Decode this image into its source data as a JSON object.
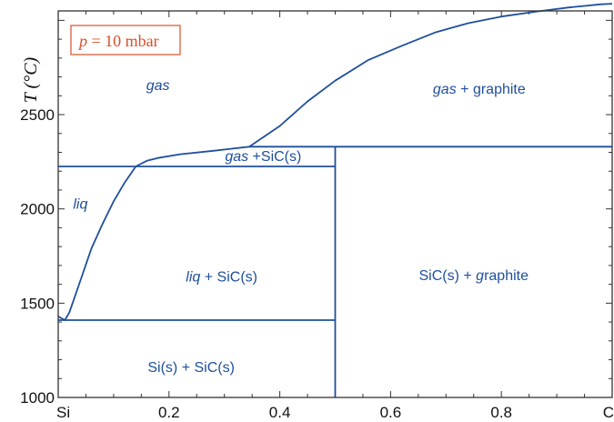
{
  "chart_data": {
    "type": "phase-diagram",
    "ylabel": "T (°C)",
    "annotation": {
      "var": "p",
      "rest": " = 10 mbar"
    },
    "xlim": [
      0,
      1
    ],
    "ylim": [
      1000,
      3050
    ],
    "x_ticks": [
      {
        "value": 0.0,
        "label": "Si"
      },
      {
        "value": 0.2,
        "label": "0.2"
      },
      {
        "value": 0.4,
        "label": "0.4"
      },
      {
        "value": 0.6,
        "label": "0.6"
      },
      {
        "value": 0.8,
        "label": "0.8"
      },
      {
        "value": 1.0,
        "label": "C"
      }
    ],
    "y_ticks": [
      {
        "value": 1000,
        "label": "1000"
      },
      {
        "value": 1500,
        "label": "1500"
      },
      {
        "value": 2000,
        "label": "2000"
      },
      {
        "value": 2500,
        "label": "2500"
      }
    ],
    "colors": {
      "phase_line": "#1f4f9c",
      "axes": "#333333",
      "annotation": "#d8502a"
    },
    "phase_boundaries": [
      {
        "name": "liquidus",
        "points": [
          [
            0.0,
            1430
          ],
          [
            0.012,
            1410
          ],
          [
            0.02,
            1450
          ],
          [
            0.04,
            1620
          ],
          [
            0.06,
            1790
          ],
          [
            0.08,
            1920
          ],
          [
            0.1,
            2040
          ],
          [
            0.12,
            2140
          ],
          [
            0.14,
            2225
          ]
        ]
      },
      {
        "name": "gas-boundary-si-side",
        "points": [
          [
            0.14,
            2225
          ],
          [
            0.16,
            2255
          ],
          [
            0.18,
            2270
          ],
          [
            0.22,
            2290
          ],
          [
            0.28,
            2308
          ],
          [
            0.345,
            2330
          ]
        ]
      },
      {
        "name": "gas-boundary-c-side",
        "points": [
          [
            0.345,
            2330
          ],
          [
            0.4,
            2440
          ],
          [
            0.45,
            2570
          ],
          [
            0.5,
            2680
          ],
          [
            0.56,
            2790
          ],
          [
            0.62,
            2865
          ],
          [
            0.68,
            2935
          ],
          [
            0.74,
            2985
          ],
          [
            0.8,
            3020
          ],
          [
            0.86,
            3045
          ],
          [
            0.92,
            3068
          ],
          [
            0.98,
            3085
          ],
          [
            1.0,
            3088
          ]
        ]
      },
      {
        "name": "peritectic-line",
        "points": [
          [
            0.0,
            2225
          ],
          [
            0.5,
            2225
          ]
        ]
      },
      {
        "name": "sic-decomposition-line",
        "points": [
          [
            0.345,
            2330
          ],
          [
            1.0,
            2330
          ]
        ]
      },
      {
        "name": "eutectic-line",
        "points": [
          [
            0.0,
            1410
          ],
          [
            0.5,
            1410
          ]
        ]
      },
      {
        "name": "sic-line",
        "points": [
          [
            0.5,
            1000
          ],
          [
            0.5,
            2330
          ]
        ]
      }
    ],
    "regions": [
      {
        "id": "gas",
        "x": 0.18,
        "y": 2660,
        "parts": [
          {
            "text": "gas",
            "italic": true
          }
        ]
      },
      {
        "id": "gas-graphite",
        "x": 0.76,
        "y": 2640,
        "parts": [
          {
            "text": "gas",
            "italic": true
          },
          {
            "text": " + graphite",
            "italic": false
          }
        ]
      },
      {
        "id": "gas-sic",
        "x": 0.37,
        "y": 2282,
        "parts": [
          {
            "text": "gas",
            "italic": true
          },
          {
            "text": " +SiC(s)",
            "italic": false
          }
        ]
      },
      {
        "id": "liq",
        "x": 0.04,
        "y": 2030,
        "parts": [
          {
            "text": "liq",
            "italic": true
          }
        ]
      },
      {
        "id": "liq-sic",
        "x": 0.295,
        "y": 1645,
        "parts": [
          {
            "text": "liq",
            "italic": true
          },
          {
            "text": " + SiC(s)",
            "italic": false
          }
        ]
      },
      {
        "id": "sic-graphite",
        "x": 0.75,
        "y": 1650,
        "parts": [
          {
            "text": "SiC(s) + ",
            "italic": false
          },
          {
            "text": "g",
            "italic": true
          },
          {
            "text": "raphite",
            "italic": false
          }
        ]
      },
      {
        "id": "si-sic",
        "x": 0.24,
        "y": 1165,
        "parts": [
          {
            "text": "Si(s) + SiC(s)",
            "italic": false
          }
        ]
      }
    ]
  }
}
